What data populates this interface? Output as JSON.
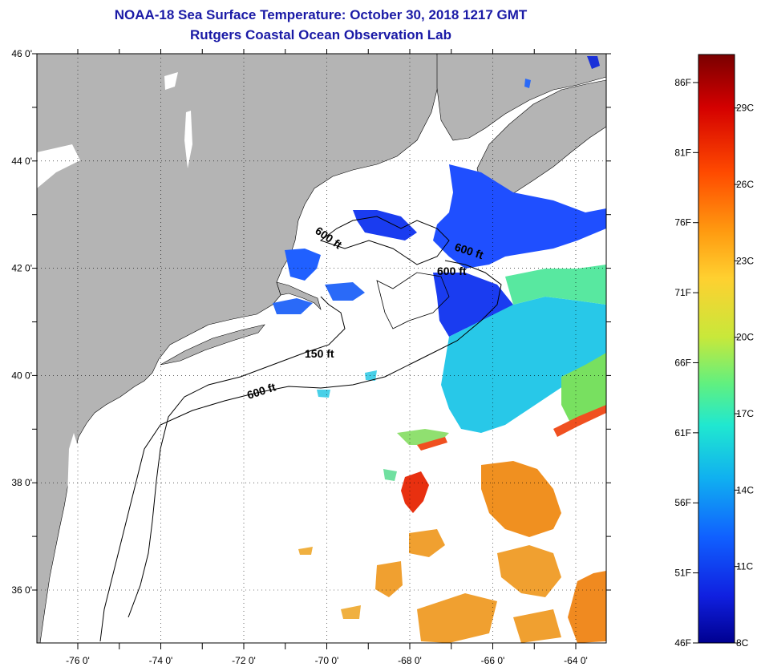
{
  "title": "NOAA-18 Sea Surface Temperature:  October 30, 2018 1217 GMT",
  "subtitle": "Rutgers Coastal Ocean Observation Lab",
  "map": {
    "lon_ticks": [
      "-76 0'",
      "-74 0'",
      "-72 0'",
      "-70 0'",
      "-68 0'",
      "-66 0'",
      "-64 0'"
    ],
    "lat_ticks": [
      "46 0'",
      "44 0'",
      "42 0'",
      "40 0'",
      "38 0'",
      "36 0'"
    ],
    "contour_labels": [
      "600 ft",
      "600 ft",
      "600 ft",
      "150 ft",
      "600 ft"
    ],
    "land_color": "#b4b4b4",
    "ocean_color": "#ffffff"
  },
  "colorbar": {
    "fahrenheit_labels": [
      "86F",
      "81F",
      "76F",
      "71F",
      "66F",
      "61F",
      "56F",
      "51F",
      "46F"
    ],
    "celsius_labels": [
      "29C",
      "26C",
      "23C",
      "20C",
      "17C",
      "14C",
      "11C",
      "8C"
    ],
    "gradient_stops": [
      "#7a0000",
      "#d40000",
      "#ff4a00",
      "#ff9a10",
      "#ffd030",
      "#c8e83a",
      "#60f080",
      "#20e8d0",
      "#10b0f0",
      "#1060ff",
      "#1020e0",
      "#000090"
    ]
  }
}
